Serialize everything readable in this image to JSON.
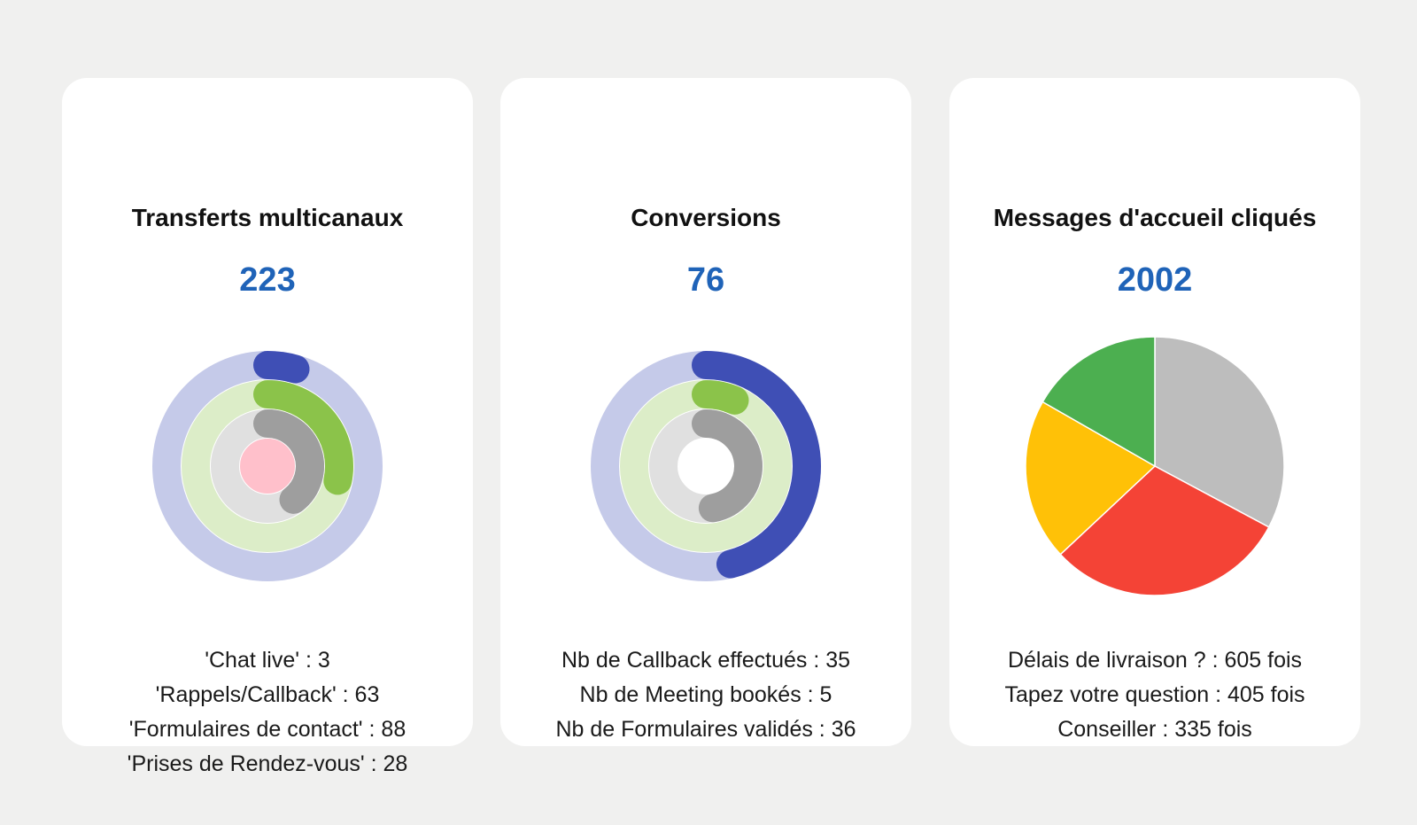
{
  "cards": [
    {
      "title": "Transferts multicanaux",
      "total": "223",
      "legend": [
        "'Chat live' : 3",
        "'Rappels/Callback' : 63",
        "'Formulaires de contact' : 88",
        "'Prises de Rendez-vous' : 28"
      ]
    },
    {
      "title": "Conversions",
      "total": "76",
      "legend": [
        "Nb de Callback effectués : 35",
        "Nb de Meeting bookés : 5",
        "Nb de Formulaires validés : 36"
      ]
    },
    {
      "title": "Messages d'accueil cliqués",
      "total": "2002",
      "legend": [
        "Délais de livraison ? : 605 fois",
        "Tapez votre question : 405 fois",
        "Conseiller : 335 fois"
      ]
    }
  ],
  "chart_data": [
    {
      "type": "radial-bar",
      "categories": [
        "Chat live",
        "Rappels/Callback",
        "Formulaires de contact",
        "Prises de Rendez-vous"
      ],
      "values": [
        3,
        63,
        88,
        28
      ],
      "max": 223,
      "colors": [
        "#3f4fb5",
        "#8bc34a",
        "#9e9e9e",
        "#ffc0cb"
      ],
      "track_colors": [
        "#c5cae9",
        "#dcedc8",
        "#e0e0e0",
        "#ffc0cb"
      ]
    },
    {
      "type": "radial-bar",
      "categories": [
        "Nb de Callback effectués",
        "Nb de Meeting bookés",
        "Nb de Formulaires validés"
      ],
      "values": [
        35,
        5,
        36
      ],
      "max": 76,
      "colors": [
        "#3f4fb5",
        "#8bc34a",
        "#9e9e9e"
      ],
      "track_colors": [
        "#c5cae9",
        "#dcedc8",
        "#e0e0e0"
      ]
    },
    {
      "type": "pie",
      "categories": [
        "Gris",
        "Rouge",
        "Jaune",
        "Vert"
      ],
      "values": [
        657,
        605,
        405,
        335
      ],
      "colors": [
        "#bdbdbd",
        "#f44336",
        "#ffc107",
        "#4caf50"
      ]
    }
  ]
}
